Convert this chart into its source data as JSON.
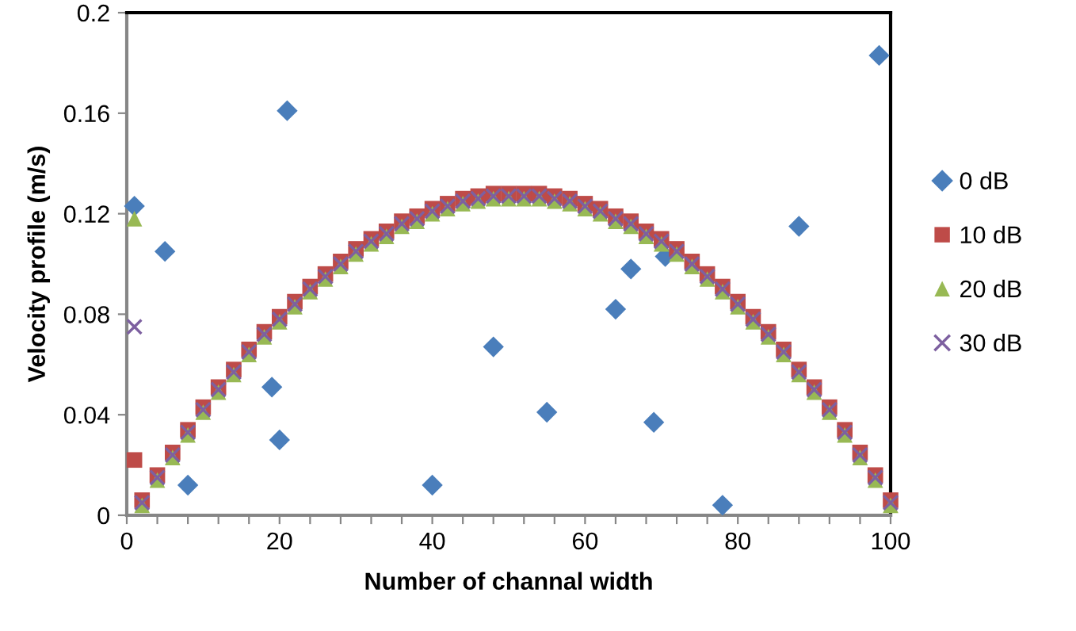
{
  "chart_data": {
    "type": "scatter",
    "xlabel": "Number of channal width",
    "ylabel": "Velocity profile (m/s)",
    "xlim": [
      0,
      100
    ],
    "ylim": [
      0,
      0.2
    ],
    "xticks": [
      0,
      {
        "value": 4,
        "label": null
      },
      {
        "value": 8,
        "label": null
      },
      {
        "value": 12,
        "label": null
      },
      {
        "value": 16,
        "label": null
      },
      20,
      {
        "value": 24,
        "label": null
      },
      {
        "value": 28,
        "label": null
      },
      {
        "value": 32,
        "label": null
      },
      {
        "value": 36,
        "label": null
      },
      40,
      {
        "value": 44,
        "label": null
      },
      {
        "value": 48,
        "label": null
      },
      {
        "value": 52,
        "label": null
      },
      {
        "value": 56,
        "label": null
      },
      60,
      {
        "value": 64,
        "label": null
      },
      {
        "value": 68,
        "label": null
      },
      {
        "value": 72,
        "label": null
      },
      {
        "value": 76,
        "label": null
      },
      80,
      {
        "value": 84,
        "label": null
      },
      {
        "value": 88,
        "label": null
      },
      {
        "value": 92,
        "label": null
      },
      {
        "value": 96,
        "label": null
      },
      100
    ],
    "yticks": [
      0,
      0.04,
      0.08,
      0.12,
      0.16,
      0.2
    ],
    "grid": false,
    "legend": "right",
    "series": [
      {
        "name": "0 dB",
        "color": "#4a7ebb",
        "marker": "diamond",
        "x": [
          1,
          5,
          8,
          19,
          20,
          21,
          40,
          48,
          55,
          64,
          66,
          69,
          70.5,
          78,
          88,
          98.5
        ],
        "values": [
          0.123,
          0.105,
          0.012,
          0.051,
          0.03,
          0.161,
          0.012,
          0.067,
          0.041,
          0.082,
          0.098,
          0.037,
          0.103,
          0.004,
          0.115,
          0.183
        ]
      },
      {
        "name": "10 dB",
        "color": "#be4b48",
        "marker": "square",
        "x": [
          1,
          2,
          4,
          6,
          8,
          10,
          12,
          14,
          16,
          18,
          20,
          22,
          24,
          26,
          28,
          30,
          32,
          34,
          36,
          38,
          40,
          42,
          44,
          46,
          48,
          50,
          52,
          54,
          56,
          58,
          60,
          62,
          64,
          66,
          68,
          70,
          72,
          74,
          76,
          78,
          80,
          82,
          84,
          86,
          88,
          90,
          92,
          94,
          96,
          98,
          100
        ],
        "values": [
          0.022,
          0.006,
          0.016,
          0.025,
          0.034,
          0.043,
          0.051,
          0.058,
          0.066,
          0.073,
          0.079,
          0.085,
          0.091,
          0.096,
          0.101,
          0.106,
          0.11,
          0.113,
          0.117,
          0.119,
          0.122,
          0.124,
          0.126,
          0.127,
          0.128,
          0.128,
          0.128,
          0.128,
          0.127,
          0.126,
          0.124,
          0.122,
          0.119,
          0.117,
          0.113,
          0.11,
          0.106,
          0.101,
          0.096,
          0.091,
          0.085,
          0.079,
          0.073,
          0.066,
          0.058,
          0.051,
          0.043,
          0.034,
          0.025,
          0.016,
          0.006
        ]
      },
      {
        "name": "20 dB",
        "color": "#98b954",
        "marker": "triangle",
        "x": [
          1,
          2,
          4,
          6,
          8,
          10,
          12,
          14,
          16,
          18,
          20,
          22,
          24,
          26,
          28,
          30,
          32,
          34,
          36,
          38,
          40,
          42,
          44,
          46,
          48,
          50,
          52,
          54,
          56,
          58,
          60,
          62,
          64,
          66,
          68,
          70,
          72,
          74,
          76,
          78,
          80,
          82,
          84,
          86,
          88,
          90,
          92,
          94,
          96,
          98,
          100
        ],
        "values": [
          0.118,
          0.004,
          0.014,
          0.023,
          0.032,
          0.041,
          0.049,
          0.056,
          0.064,
          0.071,
          0.077,
          0.083,
          0.089,
          0.094,
          0.099,
          0.104,
          0.108,
          0.111,
          0.115,
          0.117,
          0.12,
          0.122,
          0.124,
          0.125,
          0.126,
          0.126,
          0.126,
          0.126,
          0.125,
          0.124,
          0.122,
          0.12,
          0.117,
          0.115,
          0.111,
          0.108,
          0.104,
          0.099,
          0.094,
          0.089,
          0.083,
          0.077,
          0.071,
          0.064,
          0.056,
          0.049,
          0.041,
          0.032,
          0.023,
          0.014,
          0.004
        ]
      },
      {
        "name": "30 dB",
        "color": "#7d60a0",
        "marker": "cross",
        "x": [
          1,
          2,
          4,
          6,
          8,
          10,
          12,
          14,
          16,
          18,
          20,
          22,
          24,
          26,
          28,
          30,
          32,
          34,
          36,
          38,
          40,
          42,
          44,
          46,
          48,
          50,
          52,
          54,
          56,
          58,
          60,
          62,
          64,
          66,
          68,
          70,
          72,
          74,
          76,
          78,
          80,
          82,
          84,
          86,
          88,
          90,
          92,
          94,
          96,
          98,
          100
        ],
        "values": [
          0.075,
          0.005,
          0.015,
          0.024,
          0.033,
          0.042,
          0.05,
          0.057,
          0.065,
          0.072,
          0.078,
          0.084,
          0.09,
          0.095,
          0.1,
          0.105,
          0.109,
          0.112,
          0.116,
          0.118,
          0.121,
          0.123,
          0.125,
          0.126,
          0.127,
          0.127,
          0.127,
          0.127,
          0.126,
          0.125,
          0.123,
          0.121,
          0.118,
          0.116,
          0.112,
          0.109,
          0.105,
          0.1,
          0.095,
          0.09,
          0.084,
          0.078,
          0.072,
          0.065,
          0.057,
          0.05,
          0.042,
          0.033,
          0.024,
          0.015,
          0.005
        ]
      }
    ]
  }
}
